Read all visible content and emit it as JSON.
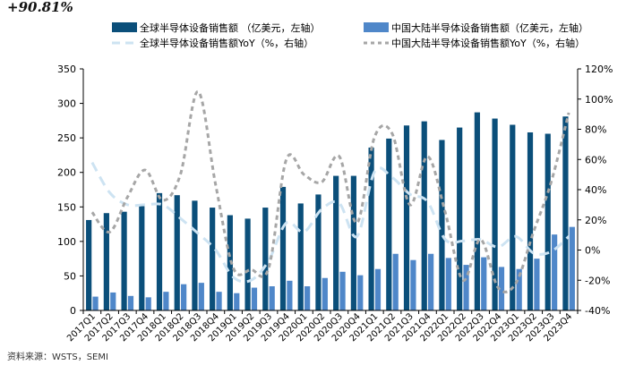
{
  "header": {
    "text": "+90.81%"
  },
  "footer": {
    "text": "资料来源：WSTS，SEMI"
  },
  "colors": {
    "global_bar": "#0b4f7a",
    "china_bar": "#4f87c9",
    "global_yoy": "#cde3f2",
    "china_yoy": "#a6a6a6",
    "axis": "#000000",
    "grid": "#d9d9d9"
  },
  "chart_data": {
    "type": "bar",
    "categories": [
      "2017Q1",
      "2017Q2",
      "2017Q3",
      "2017Q4",
      "2018Q1",
      "2018Q2",
      "2018Q3",
      "2018Q4",
      "2019Q1",
      "2019Q2",
      "2019Q3",
      "2019Q4",
      "2020Q1",
      "2020Q2",
      "2020Q3",
      "2020Q4",
      "2021Q1",
      "2021Q2",
      "2021Q3",
      "2021Q4",
      "2022Q1",
      "2022Q2",
      "2022Q3",
      "2022Q4",
      "2023Q1",
      "2023Q2",
      "2023Q3",
      "2023Q4"
    ],
    "y_left": {
      "min": 0,
      "max": 350,
      "ticks": [
        0,
        50,
        100,
        150,
        200,
        250,
        300,
        350
      ]
    },
    "y_right": {
      "min": -40,
      "max": 120,
      "ticks": [
        -40,
        -20,
        0,
        20,
        40,
        60,
        80,
        100,
        120
      ],
      "tick_labels": [
        "-40%",
        "-20%",
        "0%",
        "20%",
        "40%",
        "60%",
        "80%",
        "100%",
        "120%"
      ]
    },
    "legend_position": "top",
    "grid": false,
    "series": [
      {
        "name": "全球半导体设备销售额 （亿美元，左轴）",
        "kind": "bar",
        "axis": "left",
        "values": [
          131,
          141,
          143,
          151,
          170,
          167,
          159,
          149,
          138,
          133,
          149,
          179,
          155,
          168,
          195,
          195,
          236,
          249,
          268,
          274,
          247,
          265,
          287,
          278,
          269,
          258,
          256,
          281
        ]
      },
      {
        "name": "中国大陆半导体设备销售额（亿美元，左轴）",
        "kind": "bar",
        "axis": "left",
        "values": [
          20,
          26,
          21,
          19,
          27,
          38,
          40,
          27,
          25,
          33,
          35,
          43,
          35,
          47,
          56,
          51,
          60,
          82,
          73,
          82,
          76,
          66,
          77,
          63,
          60,
          75,
          110,
          121
        ]
      },
      {
        "name": "全球半导体设备销售额YoY（%，右轴）",
        "kind": "line",
        "dash": "long",
        "axis": "right",
        "values": [
          58,
          38,
          30,
          30,
          30,
          21,
          11,
          0,
          -18,
          -20,
          -7,
          18,
          12,
          27,
          31,
          9,
          52,
          48,
          37,
          32,
          7,
          6,
          7,
          2,
          9,
          -2,
          -1,
          9
        ]
      },
      {
        "name": "中国大陆半导体设备销售额YoY（%，右轴）",
        "kind": "line",
        "dash": "short",
        "axis": "right",
        "values": [
          25,
          12,
          35,
          53,
          33,
          50,
          105,
          43,
          -12,
          -13,
          -12,
          60,
          50,
          45,
          62,
          18,
          75,
          77,
          30,
          62,
          25,
          -20,
          7,
          -25,
          -22,
          12,
          45,
          91
        ]
      }
    ]
  }
}
